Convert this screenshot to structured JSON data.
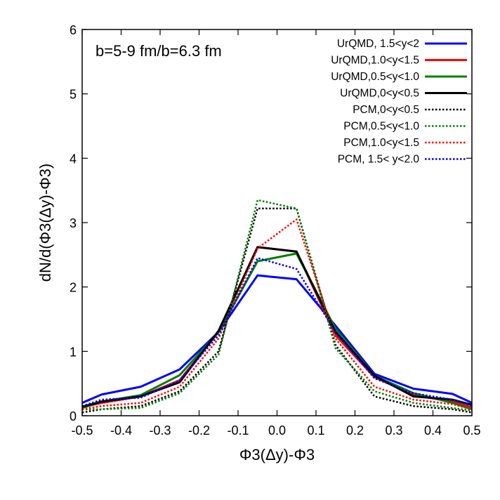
{
  "chart_data": {
    "type": "line",
    "title": "",
    "annotation": "b=5-9 fm/b=6.3 fm",
    "xlabel": "Φ3(Δy)-Φ3",
    "ylabel": "dN/d(Φ3(Δy)-Φ3)",
    "xlim": [
      -0.5,
      0.5
    ],
    "ylim": [
      0,
      6
    ],
    "xticks": [
      "-0.5",
      "-0.4",
      "-0.3",
      "-0.2",
      "-0.1",
      "0.0",
      "0.1",
      "0.2",
      "0.3",
      "0.4",
      "0.5"
    ],
    "yticks": [
      "0",
      "1",
      "2",
      "3",
      "4",
      "5",
      "6"
    ],
    "legend_position": "top-right",
    "grid": false,
    "series": [
      {
        "name": "UrQMD, 1.5<y<2",
        "color": "#0000ff",
        "style": "solid",
        "x": [
          -0.5,
          -0.45,
          -0.35,
          -0.25,
          -0.15,
          -0.05,
          0.05,
          0.15,
          0.25,
          0.35,
          0.45,
          0.5
        ],
        "y": [
          0.2,
          0.33,
          0.45,
          0.72,
          1.3,
          2.18,
          2.12,
          1.4,
          0.65,
          0.42,
          0.34,
          0.2
        ]
      },
      {
        "name": "UrQMD,1.0<y<1.5",
        "color": "#ff0000",
        "style": "solid",
        "x": [
          -0.5,
          -0.45,
          -0.35,
          -0.25,
          -0.15,
          -0.05,
          0.05,
          0.15,
          0.25,
          0.35,
          0.45,
          0.5
        ],
        "y": [
          0.13,
          0.2,
          0.3,
          0.55,
          1.3,
          2.62,
          2.55,
          1.25,
          0.6,
          0.32,
          0.22,
          0.13
        ]
      },
      {
        "name": "UrQMD,0.5<y<1.0",
        "color": "#008000",
        "style": "solid",
        "x": [
          -0.5,
          -0.45,
          -0.35,
          -0.25,
          -0.15,
          -0.05,
          0.05,
          0.15,
          0.25,
          0.35,
          0.45,
          0.5
        ],
        "y": [
          0.12,
          0.22,
          0.32,
          0.63,
          1.3,
          2.4,
          2.52,
          1.35,
          0.62,
          0.35,
          0.2,
          0.1
        ]
      },
      {
        "name": "UrQMD,0<y<0.5",
        "color": "#000000",
        "style": "solid",
        "x": [
          -0.5,
          -0.45,
          -0.35,
          -0.25,
          -0.15,
          -0.05,
          0.05,
          0.15,
          0.25,
          0.35,
          0.45,
          0.5
        ],
        "y": [
          0.14,
          0.22,
          0.3,
          0.52,
          1.32,
          2.62,
          2.55,
          1.3,
          0.62,
          0.3,
          0.25,
          0.17
        ]
      },
      {
        "name": "PCM,0<y<0.5",
        "color": "#000000",
        "style": "dotted",
        "x": [
          -0.5,
          -0.45,
          -0.35,
          -0.25,
          -0.15,
          -0.05,
          0.05,
          0.15,
          0.25,
          0.35,
          0.45,
          0.5
        ],
        "y": [
          0.05,
          0.1,
          0.15,
          0.38,
          1.0,
          3.22,
          3.22,
          1.1,
          0.3,
          0.15,
          0.1,
          0.05
        ]
      },
      {
        "name": "PCM,0.5<y<1.0",
        "color": "#008000",
        "style": "dotted",
        "x": [
          -0.5,
          -0.45,
          -0.35,
          -0.25,
          -0.15,
          -0.05,
          0.05,
          0.15,
          0.25,
          0.35,
          0.45,
          0.5
        ],
        "y": [
          0.1,
          0.1,
          0.12,
          0.35,
          0.95,
          3.35,
          3.22,
          1.05,
          0.38,
          0.2,
          0.12,
          0.08
        ]
      },
      {
        "name": "PCM,1.0<y<1.5",
        "color": "#ff0000",
        "style": "dotted",
        "x": [
          -0.5,
          -0.45,
          -0.35,
          -0.25,
          -0.15,
          -0.05,
          0.05,
          0.15,
          0.25,
          0.35,
          0.45,
          0.5
        ],
        "y": [
          0.1,
          0.15,
          0.2,
          0.45,
          1.2,
          2.6,
          3.05,
          1.2,
          0.45,
          0.25,
          0.18,
          0.1
        ]
      },
      {
        "name": "PCM, 1.5< y<2.0",
        "color": "#0000ff",
        "style": "dotted",
        "x": [
          -0.5,
          -0.45,
          -0.35,
          -0.25,
          -0.15,
          -0.05,
          0.05,
          0.15,
          0.25,
          0.35,
          0.45,
          0.5
        ],
        "y": [
          0.15,
          0.25,
          0.28,
          0.55,
          1.25,
          2.45,
          2.28,
          1.3,
          0.58,
          0.35,
          0.25,
          0.15
        ]
      }
    ]
  }
}
